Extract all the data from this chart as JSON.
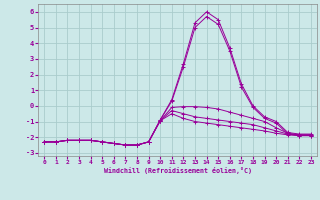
{
  "xlabel": "Windchill (Refroidissement éolien,°C)",
  "bg_color": "#cce8e8",
  "grid_color": "#aacccc",
  "line_color": "#990099",
  "xlim": [
    -0.5,
    23.5
  ],
  "ylim": [
    -3.2,
    6.5
  ],
  "xticks": [
    0,
    1,
    2,
    3,
    4,
    5,
    6,
    7,
    8,
    9,
    10,
    11,
    12,
    13,
    14,
    15,
    16,
    17,
    18,
    19,
    20,
    21,
    22,
    23
  ],
  "yticks": [
    -3,
    -2,
    -1,
    0,
    1,
    2,
    3,
    4,
    5,
    6
  ],
  "series": [
    [
      -2.3,
      -2.3,
      -2.2,
      -2.2,
      -2.2,
      -2.3,
      -2.4,
      -2.5,
      -2.5,
      -2.3,
      -0.9,
      0.4,
      2.7,
      5.3,
      6.0,
      5.5,
      3.7,
      1.4,
      0.0,
      -0.7,
      -1.0,
      -1.7,
      -1.8,
      -1.8
    ],
    [
      -2.3,
      -2.3,
      -2.2,
      -2.2,
      -2.2,
      -2.3,
      -2.4,
      -2.5,
      -2.5,
      -2.3,
      -0.9,
      0.3,
      2.5,
      5.0,
      5.7,
      5.2,
      3.5,
      1.2,
      -0.1,
      -0.8,
      -1.1,
      -1.8,
      -1.9,
      -1.9
    ],
    [
      -2.3,
      -2.3,
      -2.2,
      -2.2,
      -2.2,
      -2.3,
      -2.4,
      -2.5,
      -2.5,
      -2.3,
      -0.95,
      -0.5,
      -0.8,
      -1.0,
      -1.1,
      -1.2,
      -1.3,
      -1.4,
      -1.5,
      -1.6,
      -1.75,
      -1.85,
      -1.9,
      -1.9
    ],
    [
      -2.3,
      -2.3,
      -2.2,
      -2.2,
      -2.2,
      -2.3,
      -2.4,
      -2.5,
      -2.5,
      -2.3,
      -0.95,
      -0.3,
      -0.5,
      -0.7,
      -0.8,
      -0.9,
      -1.0,
      -1.1,
      -1.2,
      -1.4,
      -1.6,
      -1.8,
      -1.85,
      -1.85
    ],
    [
      -2.3,
      -2.3,
      -2.2,
      -2.2,
      -2.2,
      -2.3,
      -2.4,
      -2.5,
      -2.5,
      -2.3,
      -0.95,
      -0.1,
      -0.05,
      -0.05,
      -0.1,
      -0.2,
      -0.4,
      -0.6,
      -0.8,
      -1.0,
      -1.4,
      -1.75,
      -1.85,
      -1.85
    ]
  ]
}
